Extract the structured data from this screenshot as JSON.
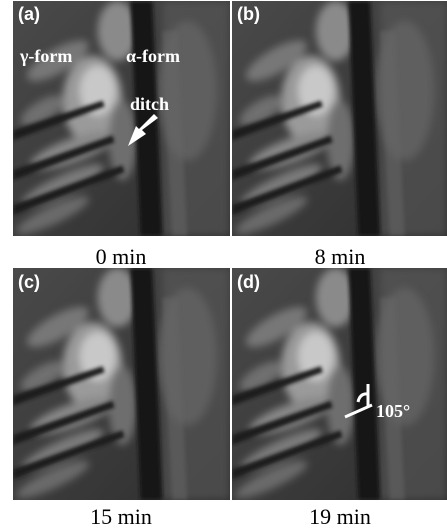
{
  "panels": [
    {
      "label": "(a)",
      "caption": "0 min",
      "annotations": [
        "γ-form",
        "α-form",
        "ditch"
      ]
    },
    {
      "label": "(b)",
      "caption": "8 min"
    },
    {
      "label": "(c)",
      "caption": "15 min"
    },
    {
      "label": "(d)",
      "caption": "19 min",
      "annotations": [
        "105°"
      ]
    }
  ]
}
